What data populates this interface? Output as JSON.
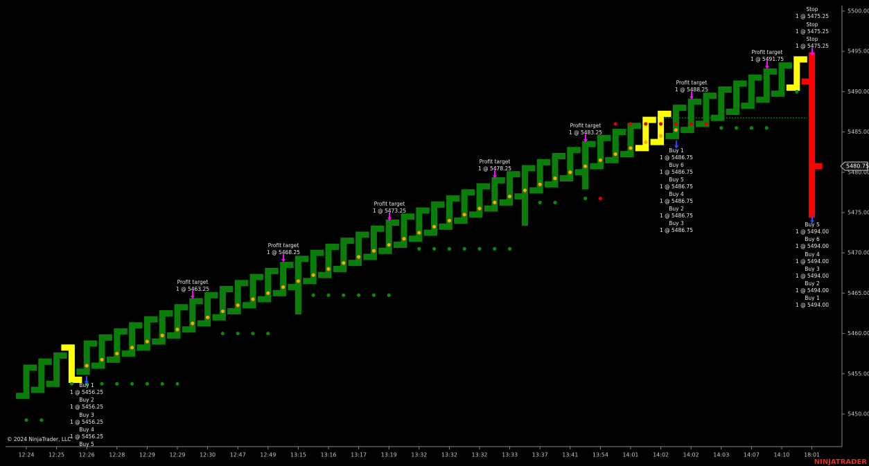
{
  "chart_data": {
    "type": "ohlc",
    "copyright": "© 2024 NinjaTrader, LLC",
    "brand": "NINJATRADER",
    "categories": [
      "12:24",
      null,
      "12:25",
      null,
      "12:26",
      null,
      "12:28",
      null,
      "12:29",
      null,
      "12:29",
      null,
      "12:30",
      null,
      "12:47",
      null,
      "12:49",
      null,
      "13:15",
      null,
      "13:16",
      null,
      "13:17",
      null,
      "13:19",
      null,
      "13:32",
      null,
      "13:32",
      null,
      "13:32",
      null,
      "13:33",
      null,
      "13:37",
      null,
      "13:41",
      null,
      "13:54",
      null,
      "14:01",
      null,
      "14:02",
      null,
      "14:02",
      null,
      "14:03",
      null,
      "14:07",
      null,
      "14:10",
      null,
      "18:01"
    ],
    "open": [
      5452.25,
      5453,
      5453.75,
      5458.25,
      5455.25,
      5456,
      5456.75,
      5457.5,
      5458.25,
      5459,
      5459.75,
      5460.5,
      5461.25,
      5462,
      5462.75,
      5463.5,
      5464.25,
      5465,
      5465.75,
      5466.5,
      5467.25,
      5468,
      5468.75,
      5469.5,
      5470.25,
      5471,
      5471.75,
      5472.5,
      5473.25,
      5474,
      5474.75,
      5475.5,
      5476.25,
      5477,
      5477.75,
      5478.5,
      5479.25,
      5480,
      5480.75,
      5481.5,
      5482.25,
      5483,
      5483.75,
      5484.5,
      5485.25,
      5486,
      5486.75,
      5487.5,
      5488.25,
      5489,
      5489.75,
      5490.5,
      5491.25
    ],
    "high": [
      5455.75,
      5456.5,
      5457.25,
      5458.25,
      5458.75,
      5459.5,
      5460.25,
      5461,
      5461.75,
      5462.5,
      5463.25,
      5464,
      5464.75,
      5465.5,
      5466.25,
      5467,
      5467.75,
      5468.5,
      5469.25,
      5470,
      5470.75,
      5471.5,
      5472.25,
      5473,
      5473.75,
      5474.5,
      5475.25,
      5476,
      5476.75,
      5477.5,
      5478.25,
      5479,
      5479.75,
      5480.5,
      5481.25,
      5482,
      5482.75,
      5483.5,
      5484.25,
      5485,
      5485.75,
      5486.5,
      5487.25,
      5488,
      5488.75,
      5489.5,
      5490.25,
      5491,
      5491.75,
      5492.5,
      5493.25,
      5494,
      5494.5
    ],
    "low": [
      5452.25,
      5453,
      5453.75,
      5454.25,
      5455.25,
      5456,
      5456.75,
      5457.5,
      5458.25,
      5459,
      5459.75,
      5460.5,
      5461.25,
      5462,
      5462.75,
      5463.5,
      5464.25,
      5465,
      5462.75,
      5466.5,
      5467.25,
      5468,
      5468.75,
      5469.5,
      5470.25,
      5471,
      5471.75,
      5472.5,
      5473.25,
      5474,
      5474.75,
      5475.5,
      5476.25,
      5473.75,
      5477.75,
      5478.5,
      5479.25,
      5478.25,
      5480.75,
      5481.5,
      5482.25,
      5483,
      5483.75,
      5484.5,
      5485.25,
      5486,
      5486.75,
      5487.5,
      5488.25,
      5489,
      5489.75,
      5490.5,
      5474.75
    ],
    "close": [
      5455.75,
      5456.5,
      5457.25,
      5454.25,
      5458.75,
      5459.5,
      5460.25,
      5461,
      5461.75,
      5462.5,
      5463.25,
      5464,
      5464.75,
      5465.5,
      5466.25,
      5467,
      5467.75,
      5468.5,
      5469.25,
      5470,
      5470.75,
      5471.5,
      5472.25,
      5473,
      5473.75,
      5474.5,
      5475.25,
      5476,
      5476.75,
      5477.5,
      5478.25,
      5479,
      5479.75,
      5480.5,
      5481.25,
      5482,
      5482.75,
      5483.5,
      5484.25,
      5485,
      5485.75,
      5486.5,
      5487.25,
      5488,
      5488.75,
      5489.5,
      5490.25,
      5491,
      5491.75,
      5492.5,
      5493.25,
      5494,
      5480.75
    ],
    "bar_colors": [
      "#0a7d0a",
      "#0a7d0a",
      "#0a7d0a",
      "#ffff00",
      "#0a7d0a",
      "#0a7d0a",
      "#0a7d0a",
      "#0a7d0a",
      "#0a7d0a",
      "#0a7d0a",
      "#0a7d0a",
      "#0a7d0a",
      "#0a7d0a",
      "#0a7d0a",
      "#0a7d0a",
      "#0a7d0a",
      "#0a7d0a",
      "#0a7d0a",
      "#0a7d0a",
      "#0a7d0a",
      "#0a7d0a",
      "#0a7d0a",
      "#0a7d0a",
      "#0a7d0a",
      "#0a7d0a",
      "#0a7d0a",
      "#0a7d0a",
      "#0a7d0a",
      "#0a7d0a",
      "#0a7d0a",
      "#0a7d0a",
      "#0a7d0a",
      "#0a7d0a",
      "#0a7d0a",
      "#0a7d0a",
      "#0a7d0a",
      "#0a7d0a",
      "#0a7d0a",
      "#0a7d0a",
      "#0a7d0a",
      "#0a7d0a",
      "#ffff00",
      "#ffff00",
      "#0a7d0a",
      "#0a7d0a",
      "#0a7d0a",
      "#0a7d0a",
      "#0a7d0a",
      "#0a7d0a",
      "#0a7d0a",
      "#0a7d0a",
      "#ffff00",
      "#ff0000"
    ],
    "indicator": {
      "color": "#ffa500",
      "values": [
        null,
        null,
        null,
        null,
        5456,
        5456.75,
        5457.5,
        5458.25,
        5459,
        5459.75,
        5460.5,
        5461.25,
        5462,
        5462.75,
        5463.5,
        5464.25,
        5465,
        5465.75,
        5466.5,
        5467.25,
        5468,
        5468.75,
        5469.5,
        5470.25,
        5471,
        5471.75,
        5472.5,
        5473.25,
        5474,
        5474.75,
        5475.5,
        5476.25,
        5477,
        5477.75,
        5478.5,
        5479.25,
        5480,
        5480.75,
        5481.5,
        5482.25,
        5483,
        5483.75,
        5484.5,
        5485.25,
        null,
        null,
        null,
        null,
        null,
        null,
        null,
        null,
        null
      ]
    },
    "stop_dots": {
      "color": "#0a8a0a",
      "values": [
        5449.25,
        5449.25,
        null,
        5453.75,
        5453.75,
        5453.75,
        5453.75,
        5453.75,
        5453.75,
        5453.75,
        5453.75,
        null,
        null,
        5460,
        5460,
        5460,
        5460,
        null,
        null,
        5464.75,
        5464.75,
        5464.75,
        5464.75,
        5464.75,
        5464.75,
        null,
        5470.5,
        5470.5,
        5470.5,
        5470.5,
        5470.5,
        5470.5,
        5470.5,
        null,
        5476.25,
        5476.25,
        null,
        5476.75,
        null,
        null,
        null,
        null,
        null,
        null,
        null,
        null,
        5485.5,
        5485.5,
        5485.5,
        5485.5,
        null,
        5490,
        null
      ]
    },
    "short_dots": {
      "color": "#e00000",
      "values": [
        null,
        null,
        null,
        null,
        null,
        null,
        null,
        null,
        null,
        null,
        null,
        null,
        null,
        null,
        null,
        null,
        null,
        null,
        null,
        null,
        null,
        null,
        null,
        null,
        null,
        null,
        null,
        null,
        null,
        null,
        null,
        null,
        null,
        null,
        null,
        null,
        null,
        null,
        5476.75,
        5486,
        5486,
        5486,
        5486,
        5486,
        5486,
        5486,
        null,
        null,
        null,
        null,
        null,
        null,
        null
      ]
    },
    "entry_line": {
      "value": 5486.75,
      "color": "#1e9e1e"
    },
    "last_price": {
      "value": 5480.75,
      "label": "5480.75"
    },
    "ylim": [
      5445.96,
      5500.6
    ],
    "yticks": [
      {
        "value": 5450,
        "label": "5450.00"
      },
      {
        "value": 5455,
        "label": "5455.00"
      },
      {
        "value": 5460,
        "label": "5460.00"
      },
      {
        "value": 5465,
        "label": "5465.00"
      },
      {
        "value": 5470,
        "label": "5470.00"
      },
      {
        "value": 5475,
        "label": "5475.00"
      },
      {
        "value": 5480,
        "label": "5480.00"
      },
      {
        "value": 5485,
        "label": "5485.00"
      },
      {
        "value": 5490,
        "label": "5490.00"
      },
      {
        "value": 5495,
        "label": "5495.00"
      },
      {
        "value": 5500,
        "label": "5500.00"
      }
    ],
    "annotations": [
      {
        "label": "Buy 1",
        "detail": "1 @ 5456.25"
      },
      {
        "label": "Buy 2",
        "detail": "1 @ 5456.25"
      },
      {
        "label": "Buy 3",
        "detail": "1 @ 5456.25"
      },
      {
        "label": "Buy 4",
        "detail": "1 @ 5456.25"
      },
      {
        "label": "Buy 5"
      },
      {
        "label": "Profit target",
        "detail": "1 @ 5463.25"
      },
      {
        "label": "Profit target",
        "detail": "1 @ 5468.25"
      },
      {
        "label": "Profit target",
        "detail": "1 @ 5473.25"
      },
      {
        "label": "Profit target",
        "detail": "1 @ 5478.25"
      },
      {
        "label": "Profit target",
        "detail": "1 @ 5483.25"
      },
      {
        "label": "Buy 1",
        "detail": "1 @ 5486.75"
      },
      {
        "label": "Buy 6",
        "detail": "1 @ 5486.75"
      },
      {
        "label": "Buy 5",
        "detail": "1 @ 5486.75"
      },
      {
        "label": "Buy 4",
        "detail": "1 @ 5486.75"
      },
      {
        "label": "Buy 2",
        "detail": "1 @ 5486.75"
      },
      {
        "label": "Buy 3",
        "detail": "1 @ 5486.75"
      },
      {
        "label": "Profit target",
        "detail": "1 @ 5488.25"
      },
      {
        "label": "Profit target",
        "detail": "1 @ 5491.75"
      },
      {
        "label": "Stop",
        "detail": "1 @ 5475.25"
      },
      {
        "label": "Stop",
        "detail": "1 @ 5475.25"
      },
      {
        "label": "Stop",
        "detail": "1 @ 5475.25"
      },
      {
        "label": "Buy 5",
        "detail": "1 @ 5494.00"
      },
      {
        "label": "Buy 6",
        "detail": "1 @ 5494.00"
      },
      {
        "label": "Buy 4",
        "detail": "1 @ 5494.00"
      },
      {
        "label": "Buy 3",
        "detail": "1 @ 5494.00"
      },
      {
        "label": "Buy 2",
        "detail": "1 @ 5494.00"
      },
      {
        "label": "Buy 1",
        "detail": "1 @ 5494.00"
      }
    ]
  }
}
